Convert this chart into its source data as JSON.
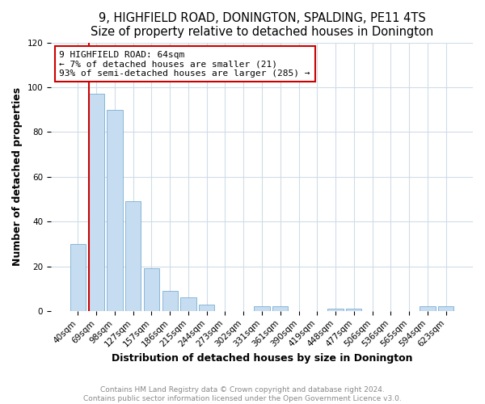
{
  "title": "9, HIGHFIELD ROAD, DONINGTON, SPALDING, PE11 4TS",
  "subtitle": "Size of property relative to detached houses in Donington",
  "xlabel": "Distribution of detached houses by size in Donington",
  "ylabel": "Number of detached properties",
  "bar_color": "#c6dcf0",
  "bar_edge_color": "#7aafd4",
  "categories": [
    "40sqm",
    "69sqm",
    "98sqm",
    "127sqm",
    "157sqm",
    "186sqm",
    "215sqm",
    "244sqm",
    "273sqm",
    "302sqm",
    "331sqm",
    "361sqm",
    "390sqm",
    "419sqm",
    "448sqm",
    "477sqm",
    "506sqm",
    "536sqm",
    "565sqm",
    "594sqm",
    "623sqm"
  ],
  "values": [
    30,
    97,
    90,
    49,
    19,
    9,
    6,
    3,
    0,
    0,
    2,
    2,
    0,
    0,
    1,
    1,
    0,
    0,
    0,
    2,
    2
  ],
  "ylim": [
    0,
    120
  ],
  "yticks": [
    0,
    20,
    40,
    60,
    80,
    100,
    120
  ],
  "red_line_index": 1,
  "annotation_title": "9 HIGHFIELD ROAD: 64sqm",
  "annotation_line1": "← 7% of detached houses are smaller (21)",
  "annotation_line2": "93% of semi-detached houses are larger (285) →",
  "annotation_box_color": "#ffffff",
  "annotation_box_edge": "#cc0000",
  "red_line_color": "#cc0000",
  "footer_line1": "Contains HM Land Registry data © Crown copyright and database right 2024.",
  "footer_line2": "Contains public sector information licensed under the Open Government Licence v3.0.",
  "background_color": "#ffffff",
  "plot_bg_color": "#ffffff",
  "grid_color": "#d0dce8",
  "title_fontsize": 10.5,
  "subtitle_fontsize": 9.5,
  "axis_label_fontsize": 9,
  "tick_fontsize": 7.5,
  "annotation_fontsize": 8,
  "footer_fontsize": 6.5
}
